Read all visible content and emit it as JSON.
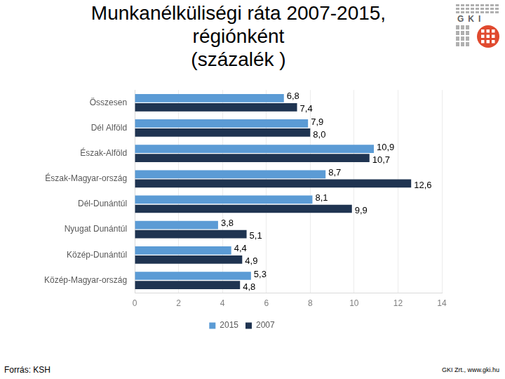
{
  "chart_data": {
    "type": "bar",
    "orientation": "horizontal",
    "title": [
      "Munkanélküliségi ráta 2007-2015,",
      "régiónként",
      "(százalék )"
    ],
    "categories": [
      "Összesen",
      "Dél Alföld",
      "Észak-Alföld",
      "Észak-Magyar-ország",
      "Dél-Dunántúl",
      "Nyugat Dunántúl",
      "Közép-Dunántúl",
      "Közép-Magyar-ország"
    ],
    "series": [
      {
        "name": "2015",
        "color": "#5b9bd5",
        "values": [
          6.8,
          7.9,
          10.9,
          8.7,
          8.1,
          3.8,
          4.4,
          5.3
        ],
        "value_labels": [
          "6,8",
          "7,9",
          "10,9",
          "8,7",
          "8,1",
          "3,8",
          "4,4",
          "5,3"
        ]
      },
      {
        "name": "2007",
        "color": "#1f3451",
        "values": [
          7.4,
          8.0,
          10.7,
          12.6,
          9.9,
          5.1,
          4.9,
          4.8
        ],
        "value_labels": [
          "7,4",
          "8,0",
          "10,7",
          "12,6",
          "9,9",
          "5,1",
          "4,9",
          "4,8"
        ]
      }
    ],
    "xlim": [
      0,
      14
    ],
    "xticks": [
      0,
      2,
      4,
      6,
      8,
      10,
      12,
      14
    ],
    "grid": true,
    "legend": "bottom",
    "data_labels": true
  },
  "page": {
    "logo": "GKI",
    "source": "Forrás: KSH",
    "credit": "GKI Zrt., www.gki.hu"
  }
}
